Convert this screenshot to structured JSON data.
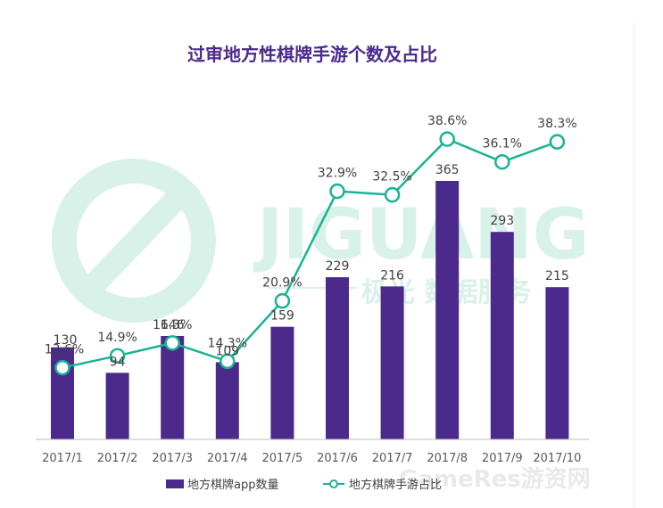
{
  "colors": {
    "bar": "#4b2a8c",
    "line": "#19b394",
    "title": "#4b2a8c",
    "axis": "#bfbfbf",
    "watermark": "#d8f1e9",
    "corner_watermark": "#e9e9e9"
  },
  "watermark": {
    "logo_text": "JIGUANG",
    "sub_text": "极光 数据服务",
    "corner_text": "GameRes游资网"
  },
  "chart_data": {
    "type": "bar",
    "title": "过审地方性棋牌手游个数及占比",
    "categories": [
      "2017/1",
      "2017/2",
      "2017/3",
      "2017/4",
      "2017/5",
      "2017/6",
      "2017/7",
      "2017/8",
      "2017/9",
      "2017/10"
    ],
    "series": [
      {
        "name": "地方棋牌app数量",
        "type": "bar",
        "axis": "left",
        "values": [
          130,
          94,
          146,
          109,
          159,
          229,
          216,
          365,
          293,
          215
        ],
        "labels": [
          "130",
          "94",
          "146",
          "109",
          "159",
          "229",
          "216",
          "365",
          "293",
          "215"
        ]
      },
      {
        "name": "地方棋牌手游占比",
        "type": "line",
        "axis": "right",
        "values": [
          13.6,
          14.9,
          16.3,
          14.3,
          20.9,
          32.9,
          32.5,
          38.6,
          36.1,
          38.3
        ],
        "labels": [
          "13.6%",
          "14.9%",
          "16.3%",
          "14.3%",
          "20.9%",
          "32.9%",
          "32.5%",
          "38.6%",
          "36.1%",
          "38.3%"
        ]
      }
    ],
    "xlabel": "",
    "ylabel": "",
    "legend": "bottom",
    "grid": false
  }
}
